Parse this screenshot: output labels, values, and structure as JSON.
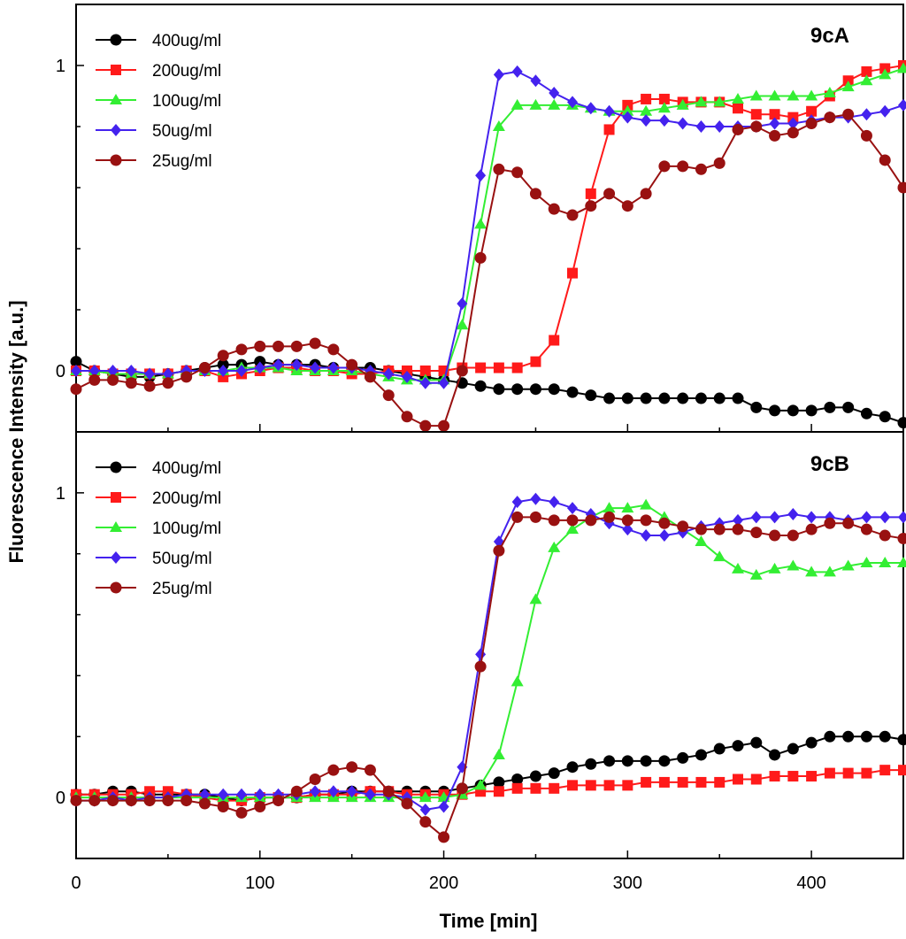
{
  "figure": {
    "ylabel": "Fluorescence Intensity [a.u.]",
    "xlabel": "Time [min]"
  },
  "colors": {
    "400ug/ml": "#000000",
    "200ug/ml": "#ff1a1a",
    "100ug/ml": "#33ee33",
    "50ug/ml": "#4422ee",
    "25ug/ml": "#991111"
  },
  "markers": {
    "400ug/ml": "circle",
    "200ug/ml": "square",
    "100ug/ml": "triangle",
    "50ug/ml": "diamond",
    "25ug/ml": "circle"
  },
  "chart_data": [
    {
      "type": "line",
      "panel": "top",
      "title": "9cA",
      "xlabel": "Time [min]",
      "ylabel": "Fluorescence Intensity [a.u.]",
      "xlim": [
        0,
        450
      ],
      "ylim": [
        -0.2,
        1.2
      ],
      "xticks": [
        0,
        100,
        200,
        300,
        400
      ],
      "yticks": [
        0,
        1
      ],
      "legend_position": "top-left",
      "x": [
        0,
        10,
        20,
        30,
        40,
        50,
        60,
        70,
        80,
        90,
        100,
        110,
        120,
        130,
        140,
        150,
        160,
        170,
        180,
        190,
        200,
        210,
        220,
        230,
        240,
        250,
        260,
        270,
        280,
        290,
        300,
        310,
        320,
        330,
        340,
        350,
        360,
        370,
        380,
        390,
        400,
        410,
        420,
        430,
        440,
        450
      ],
      "series": [
        {
          "name": "400ug/ml",
          "values": [
            0.03,
            0,
            -0.01,
            -0.02,
            -0.02,
            -0.01,
            0,
            0.01,
            0.02,
            0.02,
            0.03,
            0.02,
            0.02,
            0.02,
            0.01,
            0.01,
            0.01,
            0.0,
            -0.01,
            -0.02,
            -0.03,
            -0.04,
            -0.05,
            -0.06,
            -0.06,
            -0.06,
            -0.06,
            -0.07,
            -0.08,
            -0.09,
            -0.09,
            -0.09,
            -0.09,
            -0.09,
            -0.09,
            -0.09,
            -0.09,
            -0.12,
            -0.13,
            -0.13,
            -0.13,
            -0.12,
            -0.12,
            -0.14,
            -0.15,
            -0.17
          ]
        },
        {
          "name": "200ug/ml",
          "values": [
            0,
            0,
            -0.01,
            -0.01,
            -0.01,
            -0.01,
            0,
            0,
            -0.02,
            -0.01,
            0,
            0.01,
            0.01,
            0,
            0,
            -0.01,
            -0.01,
            0,
            0,
            0,
            0,
            0.01,
            0.01,
            0.01,
            0.01,
            0.03,
            0.1,
            0.32,
            0.58,
            0.79,
            0.87,
            0.89,
            0.89,
            0.88,
            0.88,
            0.88,
            0.86,
            0.84,
            0.84,
            0.83,
            0.85,
            0.9,
            0.95,
            0.98,
            0.99,
            1.0
          ]
        },
        {
          "name": "100ug/ml",
          "values": [
            0,
            0,
            -0.01,
            -0.01,
            -0.01,
            -0.01,
            0,
            0,
            0,
            0.01,
            0.01,
            0.01,
            0,
            0,
            0,
            0,
            -0.01,
            -0.02,
            -0.03,
            -0.03,
            -0.03,
            0.15,
            0.48,
            0.8,
            0.87,
            0.87,
            0.87,
            0.87,
            0.86,
            0.85,
            0.85,
            0.85,
            0.86,
            0.87,
            0.88,
            0.88,
            0.89,
            0.9,
            0.9,
            0.9,
            0.9,
            0.91,
            0.93,
            0.95,
            0.97,
            0.99
          ]
        },
        {
          "name": "50ug/ml",
          "values": [
            0,
            0,
            0,
            0,
            -0.01,
            -0.01,
            0,
            0,
            0,
            0,
            0.01,
            0.02,
            0.02,
            0.01,
            0.01,
            0.01,
            0,
            -0.01,
            -0.02,
            -0.04,
            -0.04,
            0.22,
            0.64,
            0.97,
            0.98,
            0.95,
            0.91,
            0.88,
            0.86,
            0.85,
            0.83,
            0.82,
            0.82,
            0.81,
            0.8,
            0.8,
            0.8,
            0.8,
            0.81,
            0.81,
            0.82,
            0.83,
            0.83,
            0.84,
            0.85,
            0.87
          ]
        },
        {
          "name": "25ug/ml",
          "values": [
            -0.06,
            -0.03,
            -0.03,
            -0.04,
            -0.05,
            -0.04,
            -0.02,
            0.01,
            0.05,
            0.07,
            0.08,
            0.08,
            0.08,
            0.09,
            0.07,
            0.02,
            -0.02,
            -0.08,
            -0.15,
            -0.18,
            -0.18,
            0.0,
            0.37,
            0.66,
            0.65,
            0.58,
            0.53,
            0.51,
            0.54,
            0.58,
            0.54,
            0.58,
            0.67,
            0.67,
            0.66,
            0.68,
            0.79,
            0.8,
            0.77,
            0.78,
            0.81,
            0.83,
            0.84,
            0.77,
            0.69,
            0.6
          ]
        }
      ]
    },
    {
      "type": "line",
      "panel": "bottom",
      "title": "9cB",
      "xlabel": "Time [min]",
      "ylabel": "Fluorescence Intensity [a.u.]",
      "xlim": [
        0,
        450
      ],
      "ylim": [
        -0.2,
        1.2
      ],
      "xticks": [
        0,
        100,
        200,
        300,
        400
      ],
      "yticks": [
        0,
        1
      ],
      "legend_position": "top-left",
      "x": [
        0,
        10,
        20,
        30,
        40,
        50,
        60,
        70,
        80,
        90,
        100,
        110,
        120,
        130,
        140,
        150,
        160,
        170,
        180,
        190,
        200,
        210,
        220,
        230,
        240,
        250,
        260,
        270,
        280,
        290,
        300,
        310,
        320,
        330,
        340,
        350,
        360,
        370,
        380,
        390,
        400,
        410,
        420,
        430,
        440,
        450
      ],
      "series": [
        {
          "name": "400ug/ml",
          "values": [
            0.01,
            0.01,
            0.02,
            0.02,
            0.01,
            0.01,
            0.01,
            0.01,
            0,
            -0.01,
            0,
            0,
            0,
            0.01,
            0.01,
            0.02,
            0.02,
            0.02,
            0.02,
            0.02,
            0.02,
            0.03,
            0.04,
            0.05,
            0.06,
            0.07,
            0.08,
            0.1,
            0.11,
            0.12,
            0.12,
            0.12,
            0.12,
            0.13,
            0.14,
            0.16,
            0.17,
            0.18,
            0.14,
            0.16,
            0.18,
            0.2,
            0.2,
            0.2,
            0.2,
            0.19
          ]
        },
        {
          "name": "200ug/ml",
          "values": [
            0.01,
            0.01,
            0.01,
            0.01,
            0.02,
            0.02,
            0.01,
            0,
            -0.01,
            -0.01,
            0,
            0,
            0,
            0.01,
            0.01,
            0.01,
            0.02,
            0.02,
            0.01,
            0.01,
            0.01,
            0.01,
            0.02,
            0.02,
            0.03,
            0.03,
            0.03,
            0.04,
            0.04,
            0.04,
            0.04,
            0.05,
            0.05,
            0.05,
            0.05,
            0.05,
            0.06,
            0.06,
            0.07,
            0.07,
            0.07,
            0.08,
            0.08,
            0.08,
            0.09,
            0.09
          ]
        },
        {
          "name": "100ug/ml",
          "values": [
            0,
            0,
            0,
            0,
            0,
            0,
            0,
            0,
            0,
            0,
            0,
            0,
            0,
            0,
            0,
            0,
            0,
            0,
            0,
            0,
            0,
            0.01,
            0.04,
            0.14,
            0.38,
            0.65,
            0.82,
            0.88,
            0.92,
            0.95,
            0.95,
            0.96,
            0.92,
            0.88,
            0.84,
            0.79,
            0.75,
            0.73,
            0.75,
            0.76,
            0.74,
            0.74,
            0.76,
            0.77,
            0.77,
            0.77
          ]
        },
        {
          "name": "50ug/ml",
          "values": [
            -0.01,
            -0.01,
            0,
            -0.01,
            0,
            0,
            0.01,
            0.01,
            0.01,
            0.01,
            0.01,
            0.01,
            0.01,
            0.02,
            0.02,
            0.02,
            0.01,
            0.01,
            0,
            -0.04,
            -0.03,
            0.1,
            0.47,
            0.84,
            0.97,
            0.98,
            0.97,
            0.95,
            0.93,
            0.9,
            0.88,
            0.86,
            0.86,
            0.87,
            0.89,
            0.9,
            0.91,
            0.92,
            0.92,
            0.93,
            0.92,
            0.92,
            0.91,
            0.92,
            0.92,
            0.92
          ]
        },
        {
          "name": "25ug/ml",
          "values": [
            -0.01,
            -0.01,
            -0.01,
            -0.01,
            -0.01,
            -0.01,
            -0.01,
            -0.02,
            -0.03,
            -0.05,
            -0.03,
            -0.01,
            0.02,
            0.06,
            0.09,
            0.1,
            0.09,
            0.02,
            -0.02,
            -0.08,
            -0.13,
            0.03,
            0.43,
            0.81,
            0.92,
            0.92,
            0.91,
            0.91,
            0.91,
            0.92,
            0.91,
            0.91,
            0.9,
            0.89,
            0.88,
            0.88,
            0.88,
            0.87,
            0.86,
            0.86,
            0.88,
            0.9,
            0.9,
            0.88,
            0.86,
            0.85
          ]
        }
      ]
    }
  ]
}
